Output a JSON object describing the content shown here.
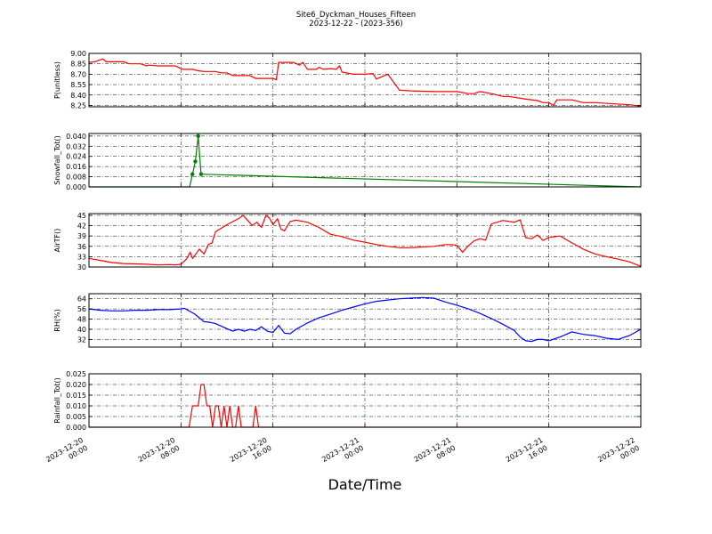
{
  "title_line1": "Site6_Dyckman_Houses_Fifteen",
  "title_line2": "2023-12-22 - (2023-356)",
  "xlabel": "Date/Time",
  "xticks": [
    {
      "line1": "2023-12-20",
      "line2": "00:00"
    },
    {
      "line1": "2023-12-20",
      "line2": "08:00"
    },
    {
      "line1": "2023-12-20",
      "line2": "16:00"
    },
    {
      "line1": "2023-12-21",
      "line2": "00:00"
    },
    {
      "line1": "2023-12-21",
      "line2": "08:00"
    },
    {
      "line1": "2023-12-21",
      "line2": "16:00"
    },
    {
      "line1": "2023-12-22",
      "line2": "00:00"
    }
  ],
  "chart_data": [
    {
      "type": "line",
      "ylabel": "P(unitless)",
      "ylim": [
        8.23,
        9.0
      ],
      "yticks": [
        "8.25",
        "8.40",
        "8.55",
        "8.70",
        "8.85",
        "9.00"
      ],
      "ytick_values": [
        8.25,
        8.4,
        8.55,
        8.7,
        8.85,
        9.0
      ],
      "xlim_hours": [
        0,
        48
      ],
      "grid": true,
      "color": "#ff0000",
      "markers": false,
      "series": [
        {
          "x_hours": [
            0,
            0.5,
            1.2,
            1.5,
            2,
            3,
            3.5,
            4,
            4.5,
            5,
            5.2,
            6,
            7,
            7.5,
            8,
            8.2,
            9,
            9.5,
            10,
            11,
            11.5,
            12,
            12.5,
            14,
            14.5,
            16,
            16.3,
            16.5,
            17.8,
            18.3,
            18.6,
            19,
            19.8,
            20,
            20.4,
            21,
            21.5,
            21.8,
            22,
            23,
            24,
            24.7,
            25,
            26,
            27,
            28,
            30,
            31,
            32,
            33,
            33.5,
            34,
            35,
            36,
            36.5,
            38,
            39,
            39.5,
            40,
            40.4,
            40.7,
            42,
            43,
            44,
            47,
            48
          ],
          "values": [
            8.87,
            8.88,
            8.92,
            8.88,
            8.88,
            8.88,
            8.85,
            8.85,
            8.85,
            8.82,
            8.83,
            8.82,
            8.82,
            8.82,
            8.78,
            8.77,
            8.77,
            8.75,
            8.74,
            8.74,
            8.72,
            8.72,
            8.68,
            8.68,
            8.64,
            8.64,
            8.62,
            8.87,
            8.87,
            8.83,
            8.87,
            8.77,
            8.77,
            8.8,
            8.77,
            8.78,
            8.77,
            8.82,
            8.73,
            8.7,
            8.7,
            8.71,
            8.63,
            8.7,
            8.47,
            8.46,
            8.45,
            8.45,
            8.45,
            8.42,
            8.42,
            8.45,
            8.42,
            8.38,
            8.38,
            8.34,
            8.32,
            8.29,
            8.29,
            8.25,
            8.33,
            8.33,
            8.29,
            8.29,
            8.26,
            8.24
          ]
        }
      ]
    },
    {
      "type": "line",
      "ylabel": "Snowfall_Tot()",
      "ylim": [
        0,
        0.042
      ],
      "yticks": [
        "0.000",
        "0.008",
        "0.016",
        "0.024",
        "0.032",
        "0.040"
      ],
      "ytick_values": [
        0,
        0.008,
        0.016,
        0.024,
        0.032,
        0.04
      ],
      "xlim_hours": [
        0,
        48
      ],
      "grid": true,
      "color": "#008000",
      "markers": true,
      "series": [
        {
          "x_hours": [
            0,
            8.75,
            9.0,
            9.25,
            9.5,
            9.75,
            48
          ],
          "values": [
            0,
            0,
            0.01,
            0.02,
            0.04,
            0.01,
            0
          ]
        }
      ]
    },
    {
      "type": "line",
      "ylabel": "AirTF()",
      "ylim": [
        30,
        45.5
      ],
      "yticks": [
        "30",
        "33",
        "36",
        "39",
        "42",
        "45"
      ],
      "ytick_values": [
        30,
        33,
        36,
        39,
        42,
        45
      ],
      "xlim_hours": [
        0,
        48
      ],
      "grid": true,
      "color": "#ff0000",
      "markers": false,
      "series": [
        {
          "x_hours": [
            0,
            1,
            2,
            3,
            4,
            5,
            6,
            7,
            7.5,
            8,
            8.5,
            8.8,
            9,
            9.3,
            9.6,
            10,
            10.4,
            10.7,
            11,
            12,
            13,
            13.4,
            13.8,
            14.2,
            14.6,
            15,
            15.4,
            15.7,
            16,
            16.4,
            16.7,
            17,
            17.5,
            18,
            19,
            20,
            21,
            22,
            23,
            24,
            25,
            26,
            27,
            28,
            29,
            30,
            31,
            31.5,
            32,
            32.5,
            33,
            33.5,
            34,
            34.5,
            35,
            36,
            37,
            37.5,
            38,
            38.5,
            39,
            39.5,
            40,
            41,
            42,
            43,
            44,
            45,
            46,
            47,
            48
          ],
          "values": [
            32.5,
            31.9,
            31.3,
            31.0,
            30.9,
            30.8,
            30.6,
            30.7,
            30.6,
            30.8,
            32.4,
            34.3,
            32.5,
            33.8,
            35.2,
            33.8,
            36.6,
            37.0,
            40.2,
            42.3,
            44.0,
            45.0,
            43.5,
            42.0,
            43.0,
            41.5,
            45.0,
            44.2,
            42.3,
            44.0,
            41.0,
            40.5,
            43.2,
            43.6,
            43.0,
            41.5,
            39.5,
            38.8,
            37.8,
            37.2,
            36.5,
            36.0,
            35.6,
            35.6,
            35.8,
            36.0,
            36.5,
            36.5,
            36.3,
            34.3,
            36.2,
            37.6,
            38.2,
            37.8,
            42.5,
            43.5,
            43.0,
            43.7,
            38.5,
            38.2,
            39.3,
            37.7,
            38.6,
            39.0,
            37.0,
            35.2,
            33.8,
            33.0,
            32.3,
            31.5,
            30.2
          ]
        }
      ]
    },
    {
      "type": "line",
      "ylabel": "RH(%)",
      "ylim": [
        26,
        68
      ],
      "yticks": [
        "32",
        "40",
        "48",
        "56",
        "64"
      ],
      "ytick_values": [
        32,
        40,
        48,
        56,
        64
      ],
      "xlim_hours": [
        0,
        48
      ],
      "grid": true,
      "color": "#0000ff",
      "markers": false,
      "series": [
        {
          "x_hours": [
            0,
            1,
            2,
            3,
            4,
            5,
            6,
            7,
            8,
            8.3,
            8.8,
            9.2,
            9.6,
            10,
            10.5,
            11,
            12,
            12.5,
            13,
            13.5,
            14,
            14.5,
            15,
            15.5,
            16,
            16.5,
            17,
            17.5,
            18,
            19,
            20,
            21,
            22,
            23,
            24,
            25,
            26,
            27,
            28,
            29,
            30,
            31,
            32,
            33,
            34,
            35,
            36,
            37,
            37.5,
            38,
            38.5,
            39,
            39.5,
            40,
            40.5,
            41,
            42,
            43,
            44,
            45,
            46,
            47,
            48
          ],
          "values": [
            56,
            55,
            54.5,
            54.5,
            55,
            55,
            55.5,
            55.5,
            56,
            56.5,
            54,
            52,
            49,
            46,
            45.5,
            44.5,
            40.5,
            38.5,
            40,
            38.5,
            40,
            39,
            42,
            38.5,
            37.5,
            43,
            37,
            36.5,
            40,
            45,
            49,
            52,
            55,
            57.5,
            60,
            62,
            63,
            64,
            64.5,
            65,
            64.5,
            61.5,
            59,
            56,
            52.5,
            48.5,
            44,
            39,
            34,
            31,
            30.5,
            32,
            32,
            31,
            32.5,
            34,
            38,
            36,
            35,
            33,
            32,
            35,
            40
          ]
        }
      ]
    },
    {
      "type": "line",
      "ylabel": "Rainfall_Tot()",
      "ylim": [
        0,
        0.025
      ],
      "yticks": [
        "0.000",
        "0.005",
        "0.010",
        "0.015",
        "0.020",
        "0.025"
      ],
      "ytick_values": [
        0,
        0.005,
        0.01,
        0.015,
        0.02,
        0.025
      ],
      "xlim_hours": [
        0,
        48
      ],
      "grid": true,
      "color": "#ff0000",
      "markers": false,
      "series": [
        {
          "x_hours": [
            0,
            8.7,
            9.0,
            9.5,
            9.75,
            10.0,
            10.25,
            10.5,
            10.75,
            11.0,
            11.25,
            11.5,
            11.75,
            12.0,
            12.25,
            12.5,
            12.75,
            13.0,
            13.25,
            13.5,
            13.75,
            14.0,
            14.25,
            14.5,
            14.75,
            15.0,
            48
          ],
          "values": [
            0,
            0,
            0.01,
            0.01,
            0.02,
            0.02,
            0.01,
            0.01,
            0,
            0.01,
            0.01,
            0,
            0.01,
            0,
            0.01,
            0,
            0,
            0.01,
            0,
            0,
            0,
            0,
            0,
            0.01,
            0,
            0,
            0
          ]
        }
      ]
    }
  ]
}
